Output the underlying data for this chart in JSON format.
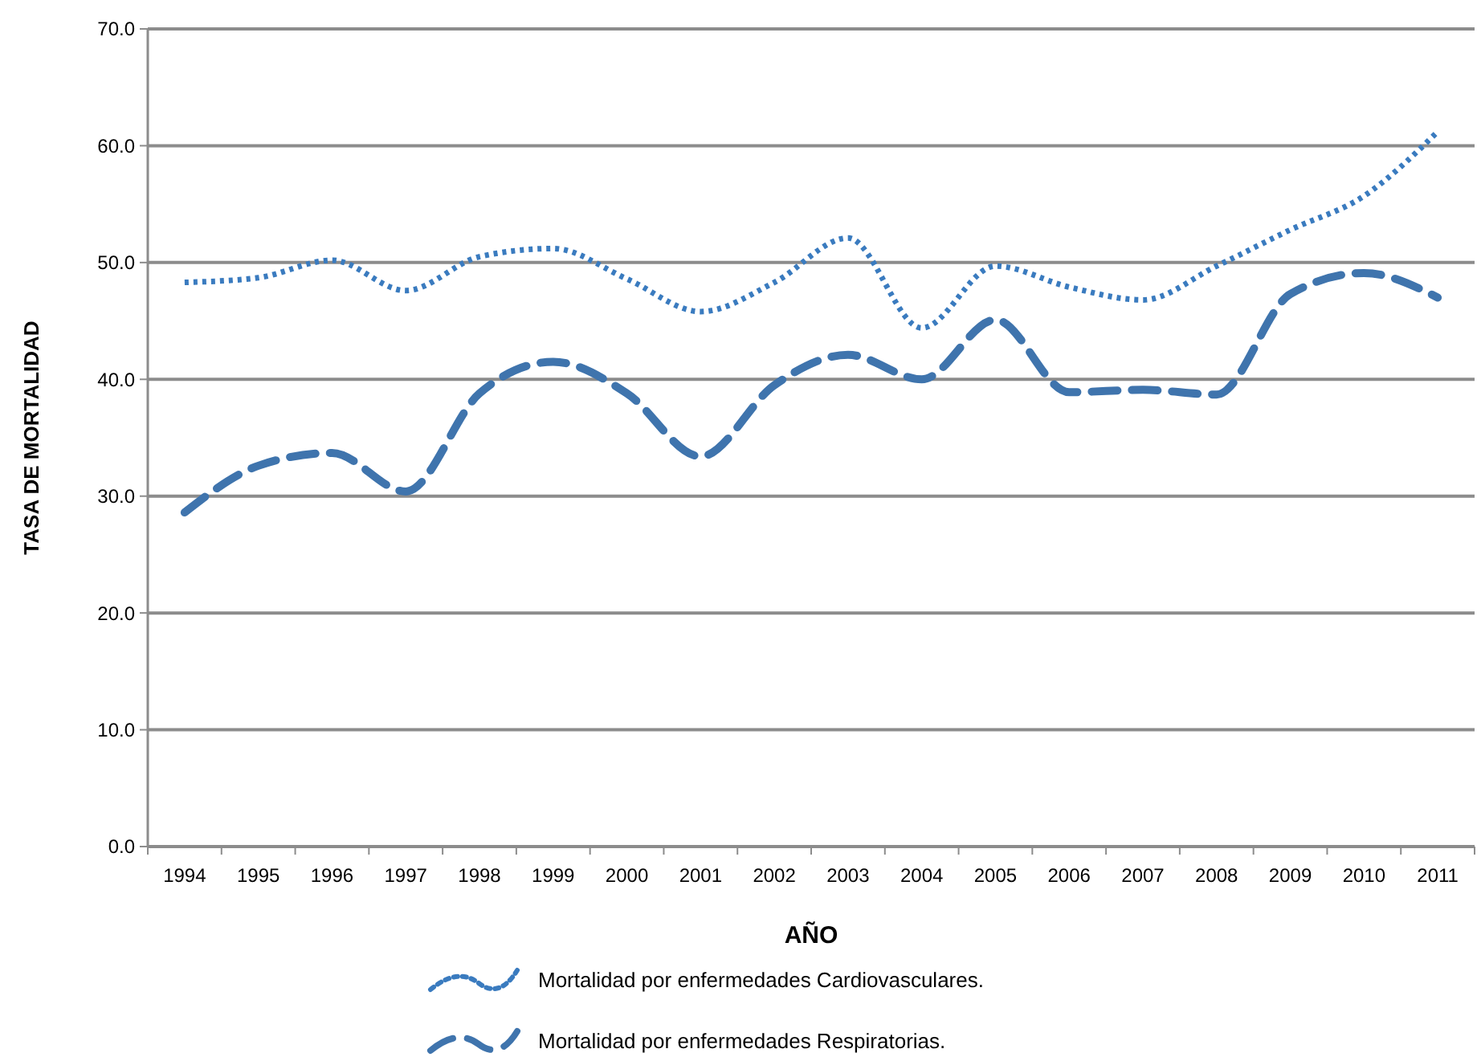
{
  "chart_data": {
    "type": "line",
    "xlabel": "AÑO",
    "ylabel": "TASA DE MORTALIDAD",
    "categories": [
      "1994",
      "1995",
      "1996",
      "1997",
      "1998",
      "1999",
      "2000",
      "2001",
      "2002",
      "2003",
      "2004",
      "2005",
      "2006",
      "2007",
      "2008",
      "2009",
      "2010",
      "2011"
    ],
    "series": [
      {
        "name": "Mortalidad por enfermedades Cardiovasculares.",
        "color": "#3a7bbf",
        "line_style": "dotted",
        "values": [
          48.3,
          48.7,
          50.2,
          47.6,
          50.5,
          51.2,
          48.6,
          45.8,
          48.3,
          52.1,
          44.4,
          49.7,
          47.9,
          46.8,
          49.7,
          52.8,
          55.7,
          61.2
        ]
      },
      {
        "name": "Mortalidad por enfermedades Respiratorias.",
        "color": "#3f74ad",
        "line_style": "dashed",
        "values": [
          28.6,
          32.6,
          33.7,
          30.4,
          38.8,
          41.5,
          38.8,
          33.4,
          39.5,
          42.1,
          40.0,
          45.1,
          38.9,
          39.1,
          38.7,
          47.3,
          49.1,
          47.0
        ]
      }
    ],
    "ylim": [
      0,
      70
    ],
    "yticks": [
      {
        "value": 0,
        "label": "0.0"
      },
      {
        "value": 10,
        "label": "10.0"
      },
      {
        "value": 20,
        "label": "20.0"
      },
      {
        "value": 30,
        "label": "30.0"
      },
      {
        "value": 40,
        "label": "40.0"
      },
      {
        "value": 50,
        "label": "50.0"
      },
      {
        "value": 60,
        "label": "60.0"
      },
      {
        "value": 70,
        "label": "70.0"
      }
    ],
    "grid": "y",
    "legend": "bottom",
    "marker": "none"
  }
}
